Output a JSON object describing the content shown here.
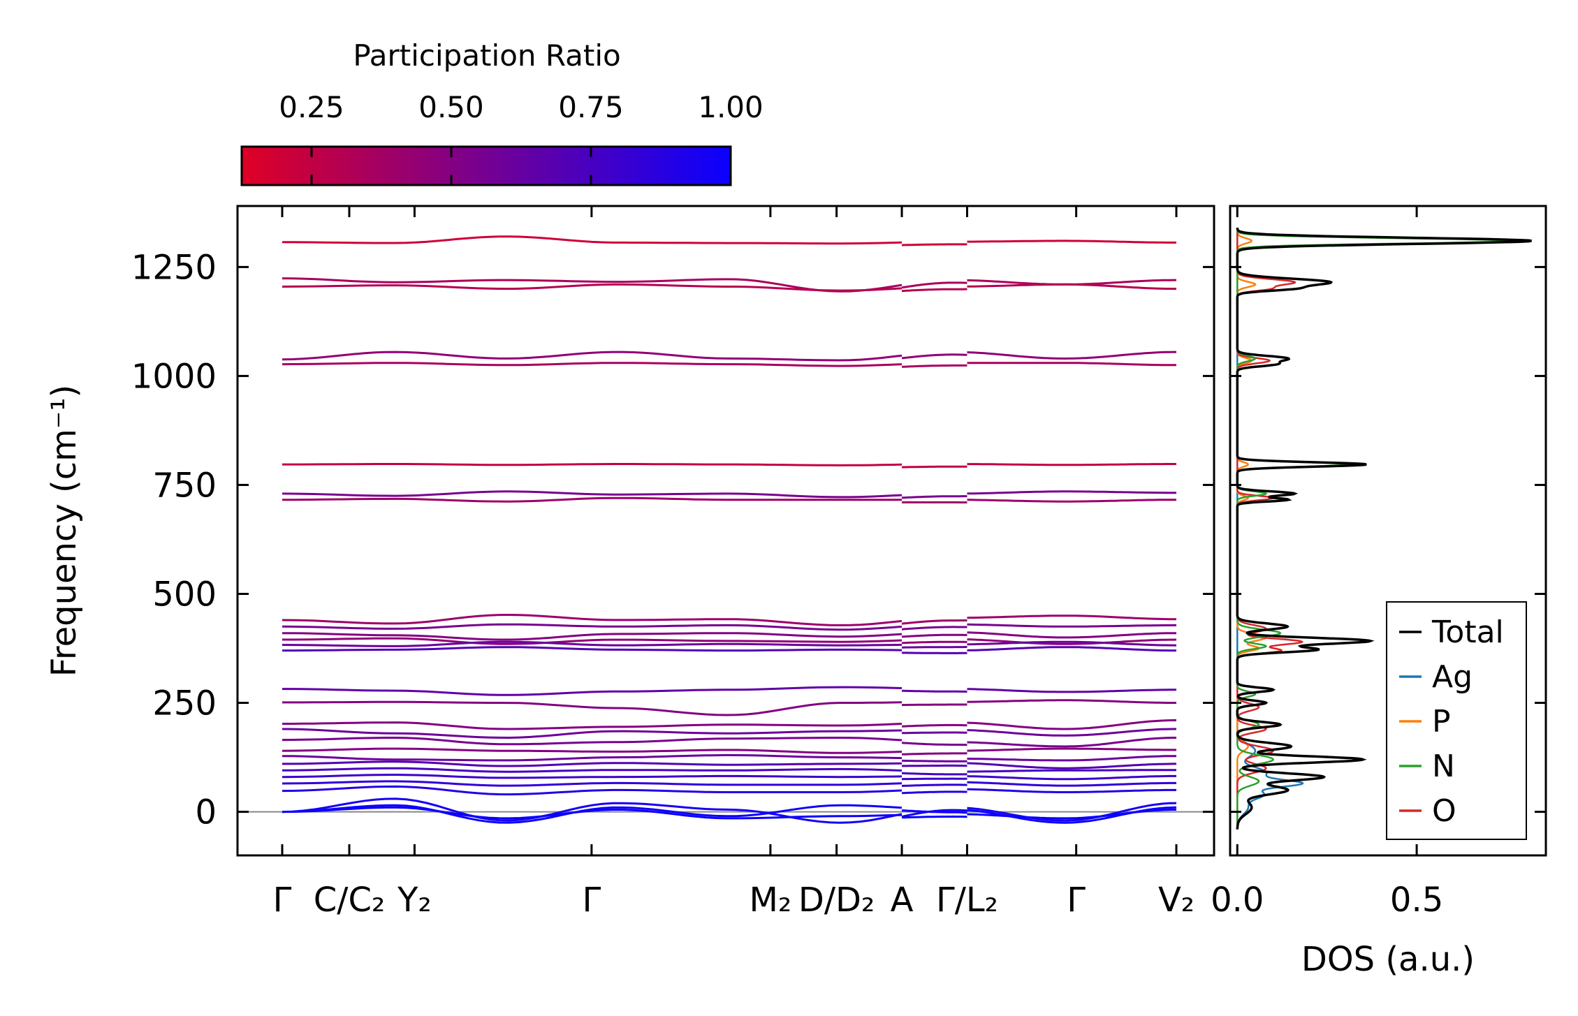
{
  "colorbar": {
    "title": "Participation Ratio",
    "ticks": [
      "0.25",
      "0.50",
      "0.75",
      "1.00"
    ],
    "tick_values": [
      0.25,
      0.5,
      0.75,
      1.0
    ],
    "range": [
      0.125,
      1.0
    ],
    "color_low": "#e00025",
    "color_high": "#0a00ff"
  },
  "chart_data": [
    {
      "type": "line",
      "name": "phonon-band-structure",
      "ylabel": "Frequency (cm⁻¹)",
      "ylim": [
        -100,
        1390
      ],
      "yticks": [
        0,
        250,
        500,
        750,
        1000,
        1250
      ],
      "ytick_labels": [
        "0",
        "250",
        "500",
        "750",
        "1000",
        "1250"
      ],
      "xticks": [
        {
          "label": "Γ",
          "pos": 0.0
        },
        {
          "label": "C/C₂",
          "pos": 0.075
        },
        {
          "label": "Y₂",
          "pos": 0.148
        },
        {
          "label": "Γ",
          "pos": 0.346
        },
        {
          "label": "M₂",
          "pos": 0.546
        },
        {
          "label": "D/D₂",
          "pos": 0.62
        },
        {
          "label": "A",
          "pos": 0.693
        },
        {
          "label": "Γ/L₂",
          "pos": 0.766
        },
        {
          "label": "Γ",
          "pos": 0.888
        },
        {
          "label": "V₂",
          "pos": 1.0
        }
      ],
      "segment_breaks": [
        0.693,
        0.766
      ],
      "bands": [
        {
          "y": [
            1307,
            1305,
            1320,
            1306,
            1305,
            1304,
            1308,
            1310,
            1306
          ],
          "pr": 0.2
        },
        {
          "y": [
            1224,
            1215,
            1220,
            1216,
            1222,
            1194,
            1220,
            1210,
            1220
          ],
          "pr": 0.35
        },
        {
          "y": [
            1205,
            1208,
            1200,
            1210,
            1205,
            1196,
            1205,
            1210,
            1200
          ],
          "pr": 0.3
        },
        {
          "y": [
            1038,
            1055,
            1040,
            1055,
            1040,
            1036,
            1055,
            1040,
            1055
          ],
          "pr": 0.45
        },
        {
          "y": [
            1027,
            1030,
            1025,
            1030,
            1027,
            1023,
            1030,
            1030,
            1025
          ],
          "pr": 0.35
        },
        {
          "y": [
            797,
            798,
            796,
            798,
            797,
            795,
            798,
            796,
            798
          ],
          "pr": 0.25
        },
        {
          "y": [
            730,
            725,
            735,
            728,
            730,
            722,
            730,
            735,
            732
          ],
          "pr": 0.55
        },
        {
          "y": [
            716,
            718,
            712,
            720,
            716,
            716,
            716,
            712,
            716
          ],
          "pr": 0.4
        },
        {
          "y": [
            440,
            432,
            452,
            440,
            442,
            428,
            445,
            450,
            442
          ],
          "pr": 0.4
        },
        {
          "y": [
            425,
            420,
            430,
            425,
            428,
            418,
            430,
            425,
            428
          ],
          "pr": 0.55
        },
        {
          "y": [
            410,
            405,
            395,
            408,
            410,
            402,
            412,
            400,
            410
          ],
          "pr": 0.5
        },
        {
          "y": [
            395,
            398,
            385,
            395,
            392,
            390,
            396,
            385,
            395
          ],
          "pr": 0.45
        },
        {
          "y": [
            383,
            380,
            390,
            382,
            385,
            382,
            384,
            390,
            382
          ],
          "pr": 0.6
        },
        {
          "y": [
            370,
            372,
            378,
            372,
            370,
            372,
            370,
            378,
            370
          ],
          "pr": 0.7
        },
        {
          "y": [
            282,
            278,
            268,
            276,
            280,
            286,
            282,
            275,
            280
          ],
          "pr": 0.65
        },
        {
          "y": [
            251,
            252,
            250,
            238,
            222,
            250,
            252,
            256,
            250
          ],
          "pr": 0.5
        },
        {
          "y": [
            202,
            205,
            190,
            195,
            200,
            198,
            205,
            190,
            210
          ],
          "pr": 0.5
        },
        {
          "y": [
            190,
            180,
            170,
            185,
            180,
            185,
            188,
            175,
            190
          ],
          "pr": 0.6
        },
        {
          "y": [
            165,
            170,
            155,
            160,
            168,
            170,
            160,
            150,
            170
          ],
          "pr": 0.55
        },
        {
          "y": [
            140,
            145,
            140,
            138,
            142,
            135,
            140,
            145,
            142
          ],
          "pr": 0.5
        },
        {
          "y": [
            128,
            120,
            118,
            125,
            130,
            125,
            122,
            118,
            128
          ],
          "pr": 0.6
        },
        {
          "y": [
            110,
            115,
            105,
            112,
            108,
            110,
            112,
            100,
            110
          ],
          "pr": 0.7
        },
        {
          "y": [
            95,
            100,
            92,
            96,
            95,
            98,
            92,
            95,
            96
          ],
          "pr": 0.75
        },
        {
          "y": [
            80,
            85,
            78,
            80,
            82,
            80,
            82,
            75,
            82
          ],
          "pr": 0.8
        },
        {
          "y": [
            65,
            70,
            60,
            66,
            62,
            62,
            68,
            60,
            66
          ],
          "pr": 0.85
        },
        {
          "y": [
            48,
            58,
            40,
            50,
            45,
            45,
            52,
            45,
            50
          ],
          "pr": 0.9
        },
        {
          "y": [
            0,
            30,
            -20,
            20,
            5,
            -25,
            10,
            -20,
            20
          ],
          "pr": 0.95
        },
        {
          "y": [
            0,
            15,
            -25,
            10,
            -10,
            15,
            5,
            -25,
            10
          ],
          "pr": 0.98
        },
        {
          "y": [
            0,
            10,
            -15,
            5,
            -15,
            -10,
            -5,
            -15,
            5
          ],
          "pr": 1.0
        }
      ]
    },
    {
      "type": "line",
      "name": "dos",
      "xlabel": "DOS (a.u.)",
      "xlim": [
        -0.02,
        0.86
      ],
      "xticks": [
        0.0,
        0.5
      ],
      "xtick_labels": [
        "0.0",
        "0.5"
      ],
      "ylim": [
        -100,
        1390
      ],
      "legend_position": "lower-right",
      "series": [
        {
          "name": "Total",
          "color": "#000000",
          "peaks": [
            [
              1310,
              0.82,
              7
            ],
            [
              1215,
              0.26,
              8
            ],
            [
              1200,
              0.12,
              5
            ],
            [
              1040,
              0.14,
              6
            ],
            [
              1027,
              0.1,
              5
            ],
            [
              797,
              0.36,
              5
            ],
            [
              730,
              0.16,
              5
            ],
            [
              716,
              0.14,
              4
            ],
            [
              425,
              0.14,
              7
            ],
            [
              392,
              0.37,
              7
            ],
            [
              372,
              0.22,
              6
            ],
            [
              280,
              0.1,
              5
            ],
            [
              250,
              0.08,
              5
            ],
            [
              200,
              0.12,
              6
            ],
            [
              150,
              0.15,
              8
            ],
            [
              120,
              0.35,
              7
            ],
            [
              80,
              0.24,
              8
            ],
            [
              50,
              0.14,
              10
            ],
            [
              10,
              0.04,
              15
            ]
          ]
        },
        {
          "name": "Ag",
          "color": "#1f77b4",
          "peaks": [
            [
              140,
              0.05,
              15
            ],
            [
              90,
              0.08,
              12
            ],
            [
              65,
              0.17,
              8
            ],
            [
              40,
              0.07,
              10
            ],
            [
              10,
              0.03,
              15
            ]
          ]
        },
        {
          "name": "P",
          "color": "#ff7f0e",
          "peaks": [
            [
              1310,
              0.04,
              6
            ],
            [
              1210,
              0.05,
              6
            ],
            [
              1035,
              0.04,
              6
            ],
            [
              797,
              0.03,
              5
            ],
            [
              720,
              0.03,
              5
            ],
            [
              400,
              0.08,
              8
            ],
            [
              375,
              0.06,
              6
            ],
            [
              150,
              0.03,
              10
            ]
          ]
        },
        {
          "name": "N",
          "color": "#2ca02c",
          "peaks": [
            [
              1310,
              0.76,
              6
            ],
            [
              797,
              0.31,
              5
            ],
            [
              730,
              0.08,
              5
            ],
            [
              1040,
              0.05,
              6
            ],
            [
              410,
              0.12,
              8
            ],
            [
              380,
              0.08,
              6
            ],
            [
              270,
              0.05,
              6
            ],
            [
              200,
              0.06,
              8
            ],
            [
              120,
              0.1,
              10
            ],
            [
              70,
              0.06,
              10
            ]
          ]
        },
        {
          "name": "O",
          "color": "#d62728",
          "peaks": [
            [
              1215,
              0.16,
              7
            ],
            [
              1200,
              0.08,
              5
            ],
            [
              1035,
              0.09,
              6
            ],
            [
              720,
              0.1,
              5
            ],
            [
              420,
              0.08,
              8
            ],
            [
              390,
              0.18,
              7
            ],
            [
              370,
              0.12,
              6
            ],
            [
              240,
              0.06,
              8
            ],
            [
              190,
              0.08,
              8
            ],
            [
              140,
              0.1,
              10
            ],
            [
              100,
              0.08,
              10
            ]
          ]
        }
      ]
    }
  ]
}
